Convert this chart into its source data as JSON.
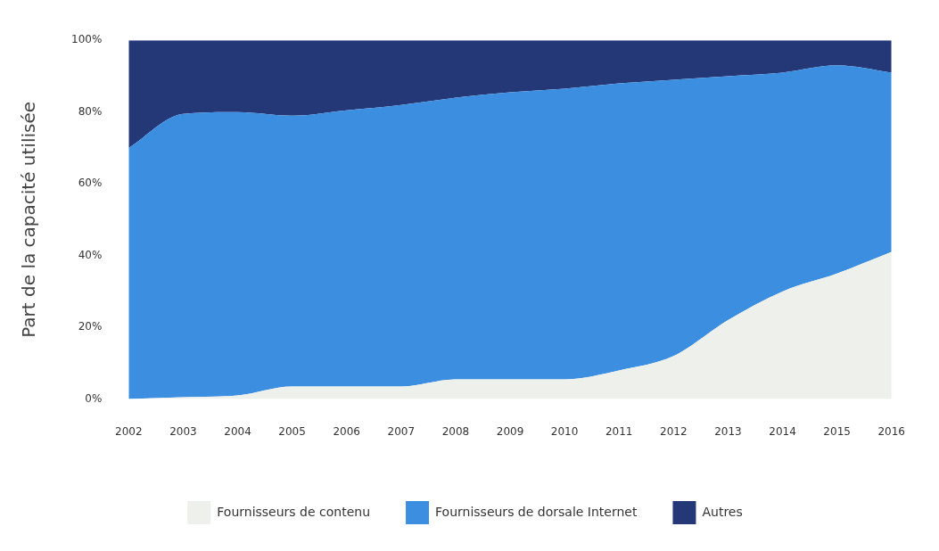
{
  "chart_data": {
    "type": "area",
    "stacked": true,
    "ylabel": "Part de la capacité utilisée",
    "categories": [
      "2002",
      "2003",
      "2004",
      "2005",
      "2006",
      "2007",
      "2008",
      "2009",
      "2010",
      "2011",
      "2012",
      "2013",
      "2014",
      "2015",
      "2016"
    ],
    "series": [
      {
        "name": "Fournisseurs de contenu",
        "color": "#eef0eb",
        "values": [
          0,
          0.5,
          1,
          3.5,
          3.5,
          3.5,
          5.5,
          5.5,
          5.5,
          8,
          12,
          22,
          30,
          35,
          41
        ]
      },
      {
        "name": "Fournisseurs de dorsale Internet",
        "color": "#3b8ee0",
        "values": [
          70,
          79,
          79,
          75.5,
          77,
          78.5,
          78.5,
          80,
          81,
          80,
          77,
          68,
          61,
          58,
          50
        ]
      },
      {
        "name": "Autres",
        "color": "#243777",
        "values": [
          30,
          20.5,
          20,
          21,
          19.5,
          18,
          16,
          14.5,
          13.5,
          12,
          11,
          10,
          9,
          7,
          9
        ]
      }
    ],
    "ylim": [
      0,
      100
    ],
    "yticks": [
      {
        "value": 0,
        "label": "0%"
      },
      {
        "value": 20,
        "label": "20%"
      },
      {
        "value": 40,
        "label": "40%"
      },
      {
        "value": 60,
        "label": "60%"
      },
      {
        "value": 80,
        "label": "80%"
      },
      {
        "value": 100,
        "label": "100%"
      }
    ],
    "grid": false,
    "legend": "bottom",
    "marker": "none"
  }
}
